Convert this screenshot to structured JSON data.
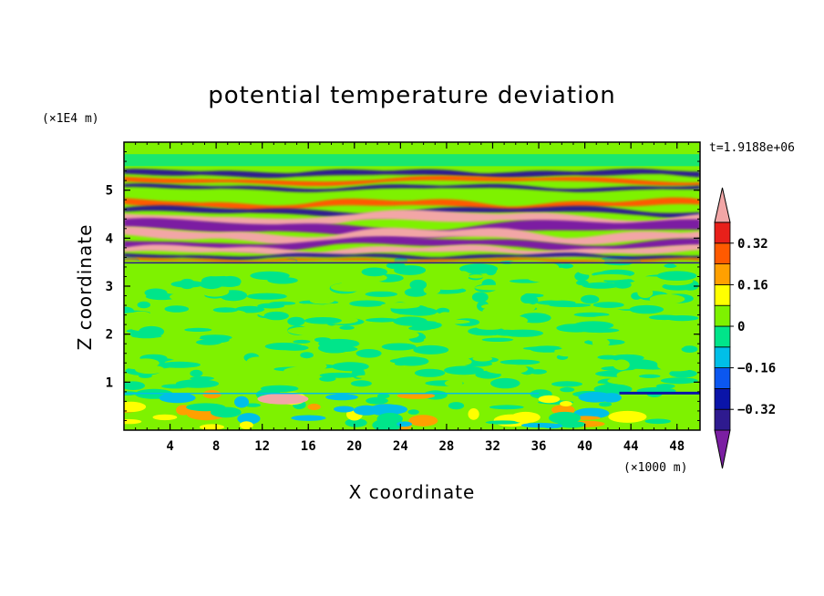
{
  "chart_data": {
    "type": "heatmap",
    "title": "potential temperature deviation",
    "xlabel": "X coordinate",
    "ylabel": "Z coordinate",
    "x_unit": "(×1000 m)",
    "y_unit": "(×1E4 m)",
    "time_label": "t=1.9188e+06",
    "xlim": [
      0,
      50
    ],
    "ylim": [
      0,
      6
    ],
    "x_ticks": [
      "4",
      "8",
      "12",
      "16",
      "20",
      "24",
      "28",
      "32",
      "36",
      "40",
      "44",
      "48"
    ],
    "y_ticks": [
      "1",
      "2",
      "3",
      "4",
      "5"
    ],
    "colorbar": {
      "levels": [
        -0.4,
        -0.32,
        -0.24,
        -0.16,
        -0.08,
        0,
        0.08,
        0.16,
        0.24,
        0.32,
        0.4
      ],
      "labels": [
        "0.32",
        "0.16",
        "0",
        "-0.16",
        "-0.32"
      ],
      "colors": [
        "#7b1fa2",
        "#2e1a8f",
        "#0a14a8",
        "#0b57f0",
        "#00bfe8",
        "#00e58a",
        "#7ef200",
        "#ffff00",
        "#ffa000",
        "#ff5a00",
        "#e8201a",
        "#f2a6a6"
      ]
    }
  }
}
